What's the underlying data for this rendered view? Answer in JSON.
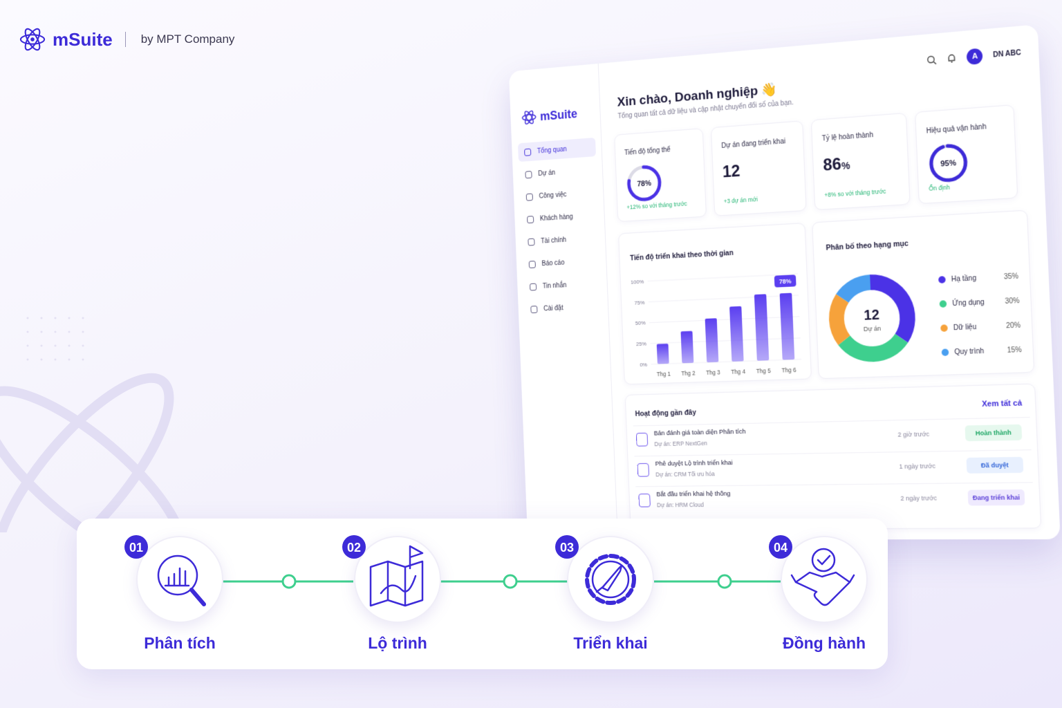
{
  "brand": {
    "name": "mSuite",
    "tagline": "by MPT Company"
  },
  "dashboard": {
    "sidebar": {
      "brand": "mSuite",
      "items": [
        "Tổng quan",
        "Dự án",
        "Công việc",
        "Khách hàng",
        "Tài chính",
        "Báo cáo",
        "Tin nhắn",
        "Cài đặt"
      ]
    },
    "user": {
      "avatar": "A",
      "name": "DN ABC"
    },
    "greeting": "Xin chào, Doanh nghiệp 👋",
    "subtitle": "Tổng quan tất cả dữ liệu và cập nhật chuyển đổi số của bạn.",
    "stats": [
      {
        "label": "Tiến độ tổng thể",
        "value": 78,
        "value_label": "78%",
        "note": "+12% so với tháng trước"
      },
      {
        "label": "Dự án đang triển khai",
        "value": 12,
        "note": "+3 dự án mới"
      },
      {
        "label": "Tỷ lệ hoàn thành",
        "value": 86,
        "unit": "%",
        "note": "+8% so với tháng trước"
      },
      {
        "label": "Hiệu quả vận hành",
        "value": 95,
        "value_label": "95%",
        "note": "Ổn định"
      }
    ],
    "bar_chart": {
      "type": "bar",
      "title": "Tiến độ triển khai theo thời gian",
      "categories": [
        "Thg 1",
        "Thg 2",
        "Thg 3",
        "Thg 4",
        "Thg 5",
        "Thg 6"
      ],
      "values": [
        24,
        38,
        52,
        65,
        78,
        78
      ],
      "value_labels": [
        null,
        null,
        null,
        null,
        null,
        "78%"
      ],
      "color": "#5b3ff0",
      "ylim": [
        0,
        100
      ],
      "yticks": [
        {
          "value": 0,
          "label": "0%"
        },
        {
          "value": 25,
          "label": "25%"
        },
        {
          "value": 50,
          "label": "50%"
        },
        {
          "value": 75,
          "label": "75%"
        },
        {
          "value": 100,
          "label": "100%"
        }
      ]
    },
    "donut": {
      "type": "pie",
      "title": "Phân bố theo hạng mục",
      "center_value": 12,
      "center_label": "Dự án",
      "categories": [
        "Hạ tầng",
        "Ứng dụng",
        "Dữ liệu",
        "Quy trình"
      ],
      "values": [
        35,
        30,
        20,
        15
      ],
      "value_labels": [
        "35%",
        "30%",
        "20%",
        "15%"
      ],
      "colors": [
        "#4b32e6",
        "#3ecf8e",
        "#f6a23b",
        "#4a9ff0"
      ]
    },
    "activity": {
      "title": "Hoạt động gần đây",
      "link": "Xem tất cả",
      "items": [
        {
          "title": "Bản đánh giá toàn diện Phân tích",
          "project": "Dự án: ERP NextGen",
          "time": "2 giờ trước",
          "status": "Hoàn thành"
        },
        {
          "title": "Phê duyệt Lộ trình triển khai",
          "project": "Dự án: CRM Tối ưu hóa",
          "time": "1 ngày trước",
          "status": "Đã duyệt"
        },
        {
          "title": "Bắt đầu triển khai hệ thống",
          "project": "Dự án: HRM Cloud",
          "time": "2 ngày trước",
          "status": "Đang triển khai"
        }
      ]
    }
  },
  "steps": [
    {
      "number": "01",
      "label": "Phân tích"
    },
    {
      "number": "02",
      "label": "Lộ trình"
    },
    {
      "number": "03",
      "label": "Triển khai"
    },
    {
      "number": "04",
      "label": "Đồng hành"
    }
  ]
}
